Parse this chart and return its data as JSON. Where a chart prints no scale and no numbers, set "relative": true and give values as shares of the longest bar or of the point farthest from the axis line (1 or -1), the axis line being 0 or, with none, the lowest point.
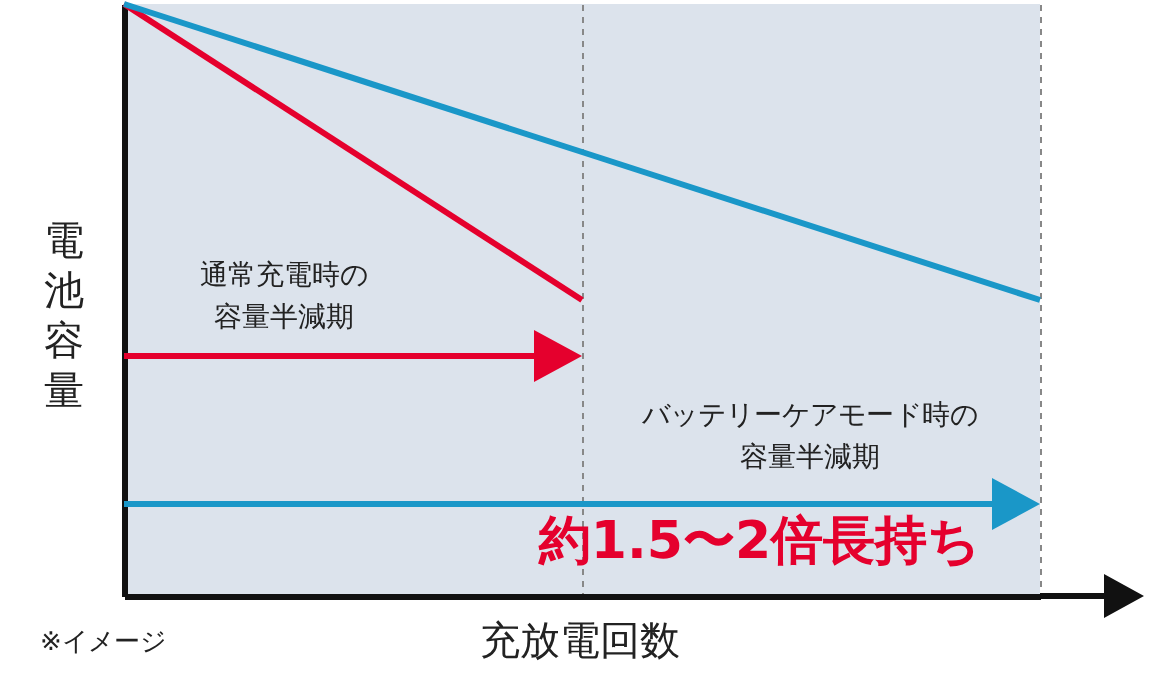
{
  "chart_data": {
    "type": "line",
    "relative": true,
    "xlabel": "充放電回数",
    "ylabel": "電池容量",
    "categories": [
      null,
      null,
      null
    ],
    "series": [
      {
        "color": "#e5002d",
        "values": [
          1,
          0.5,
          null
        ]
      },
      {
        "color": "#1a97c8",
        "values": [
          1,
          0.75,
          0.5
        ]
      }
    ],
    "annotations": [
      "通常充電時の",
      "容量半減期",
      "バッテリーケアモード時の",
      "容量半減期",
      "約1.5〜2倍長持ち",
      "※イメージ"
    ],
    "grid": "x",
    "marker": "none",
    "line_style": "solid"
  }
}
